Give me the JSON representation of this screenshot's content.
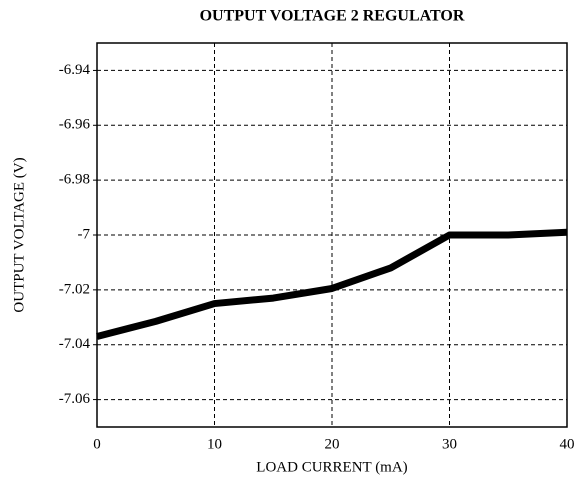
{
  "chart_data": {
    "type": "line",
    "title": "OUTPUT VOLTAGE 2 REGULATOR",
    "x_label": "LOAD CURRENT (mA)",
    "y_label": "OUTPUT VOLTAGE (V)",
    "x": [
      0,
      5,
      10,
      15,
      20,
      25,
      30,
      35,
      40
    ],
    "series": [
      {
        "name": "Output voltage",
        "color": "#000000",
        "values": [
          -7.037,
          -7.0315,
          -7.025,
          -7.023,
          -7.0195,
          -7.012,
          -7.0,
          -7.0,
          -6.999
        ]
      }
    ],
    "xlim": [
      0,
      40
    ],
    "xticks": [
      0,
      10,
      20,
      30,
      40
    ],
    "ylim": [
      -7.07,
      -6.93
    ],
    "yticks": [
      -6.94,
      -6.96,
      -6.98,
      -7,
      -7.02,
      -7.04,
      -7.06
    ],
    "grid": true
  }
}
